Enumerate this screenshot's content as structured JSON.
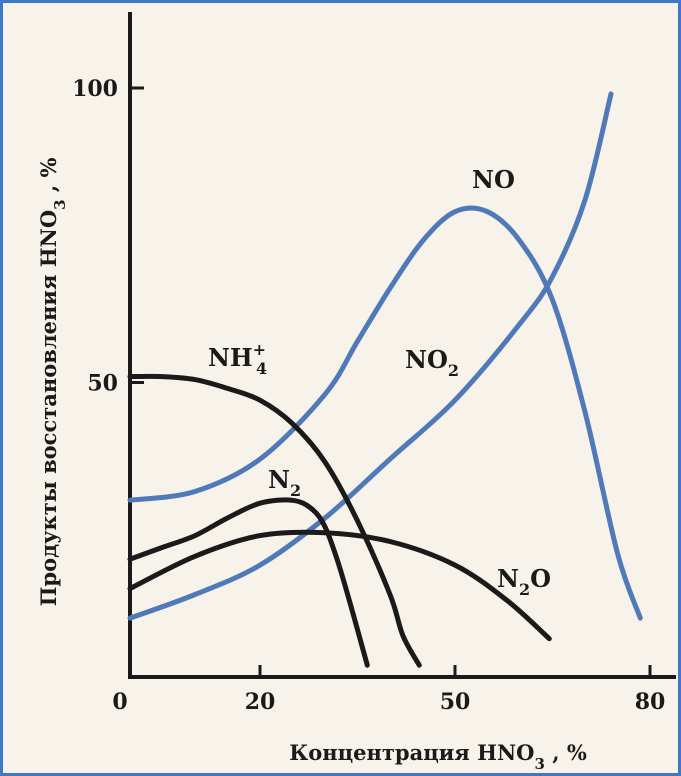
{
  "chart_data": {
    "type": "line",
    "title": "",
    "xlabel": {
      "main": "Концентрация  HNO",
      "sub": "3",
      "tail": " , %"
    },
    "ylabel": {
      "main": "Продукты восстановления  HNO",
      "sub": "3",
      "tail": " , %"
    },
    "xlim": [
      0,
      80
    ],
    "ylim": [
      0,
      100
    ],
    "x_ticks": [
      {
        "value": 0,
        "label": "0"
      },
      {
        "value": 20,
        "label": "20"
      },
      {
        "value": 50,
        "label": "50"
      },
      {
        "value": 80,
        "label": "80"
      }
    ],
    "y_ticks": [
      {
        "value": 50,
        "label": "50"
      },
      {
        "value": 100,
        "label": "100"
      }
    ],
    "series": [
      {
        "name": "NO",
        "label_main": "NO",
        "label_sub": "",
        "label_sup": "",
        "color": "#4f79b8",
        "x": [
          0,
          10,
          20,
          30,
          35,
          40,
          45,
          50,
          55,
          60,
          65,
          70,
          75,
          78.5
        ],
        "y": [
          30,
          31.5,
          37,
          48,
          57,
          66,
          74,
          79,
          79,
          74,
          64,
          45,
          21,
          10
        ]
      },
      {
        "name": "NO2",
        "label_main": "NO",
        "label_sub": "2",
        "label_sup": "",
        "color": "#4f79b8",
        "x": [
          0,
          10,
          20,
          30,
          40,
          50,
          60,
          65,
          70,
          74
        ],
        "y": [
          10,
          14,
          19,
          27,
          37,
          47,
          60,
          68,
          81,
          99
        ]
      },
      {
        "name": "NH4+",
        "label_main": "NH",
        "label_sub": "4",
        "label_sup": "+",
        "color": "#1a1a1a",
        "x": [
          0,
          5,
          10,
          15,
          20,
          25,
          30,
          35,
          40,
          42,
          44.5
        ],
        "y": [
          51,
          51,
          50.5,
          49,
          47,
          43,
          36.5,
          26.5,
          14,
          7,
          2
        ]
      },
      {
        "name": "N2",
        "label_main": "N",
        "label_sub": "2",
        "label_sup": "",
        "color": "#1a1a1a",
        "x": [
          0,
          5,
          10,
          15,
          20,
          25,
          28,
          30,
          32,
          34,
          36.5
        ],
        "y": [
          20,
          22,
          24,
          27,
          29.5,
          30,
          28.5,
          25.5,
          19.5,
          12,
          2
        ]
      },
      {
        "name": "N2O",
        "label_main": "N",
        "label_sub": "2",
        "label_sup": "",
        "label_tail": "O",
        "color": "#1a1a1a",
        "x": [
          0,
          10,
          20,
          30,
          40,
          50,
          58,
          64.5
        ],
        "y": [
          15,
          20.5,
          24,
          24.5,
          23,
          19,
          13,
          6.5
        ]
      }
    ],
    "annotations": [
      "NO",
      "NO2",
      "NH4+",
      "N2",
      "N2O"
    ],
    "grid": false,
    "legend": "none (labels on curves)"
  }
}
